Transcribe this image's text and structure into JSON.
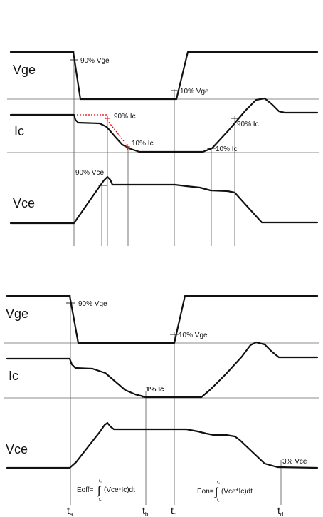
{
  "top": {
    "signals": {
      "vge": "Vge",
      "ic": "Ic",
      "vce": "Vce"
    },
    "annotations": {
      "vge90": "90% Vge",
      "vge10": "10% Vge",
      "ic90_off": "90% Ic",
      "ic10_off": "10% Ic",
      "vce90": "90% Vce",
      "ic10_on": "10% Ic",
      "ic90_on": "90% Ic"
    }
  },
  "bottom": {
    "signals": {
      "vge": "Vge",
      "ic": "Ic",
      "vce": "Vce"
    },
    "annotations": {
      "vge90": "90% Vge",
      "vge10": "10% Vge",
      "ic1": "1% Ic",
      "vce3": "3% Vce"
    },
    "eoff": {
      "prefix": "Eoff=",
      "upper": "t",
      "upper_sub": "b",
      "lower": "t",
      "lower_sub": "a",
      "expr": "(Vce*Ic)dt"
    },
    "eon": {
      "prefix": "Eon=",
      "upper": "t",
      "upper_sub": "d",
      "lower": "t",
      "lower_sub": "c",
      "expr": "(Vce*Ic)dt"
    },
    "time_marks": [
      {
        "t": "t",
        "sub": "a"
      },
      {
        "t": "t",
        "sub": "b"
      },
      {
        "t": "t",
        "sub": "c"
      },
      {
        "t": "t",
        "sub": "d"
      }
    ]
  },
  "colors": {
    "trace": "#111111",
    "marker": "#e00000"
  }
}
